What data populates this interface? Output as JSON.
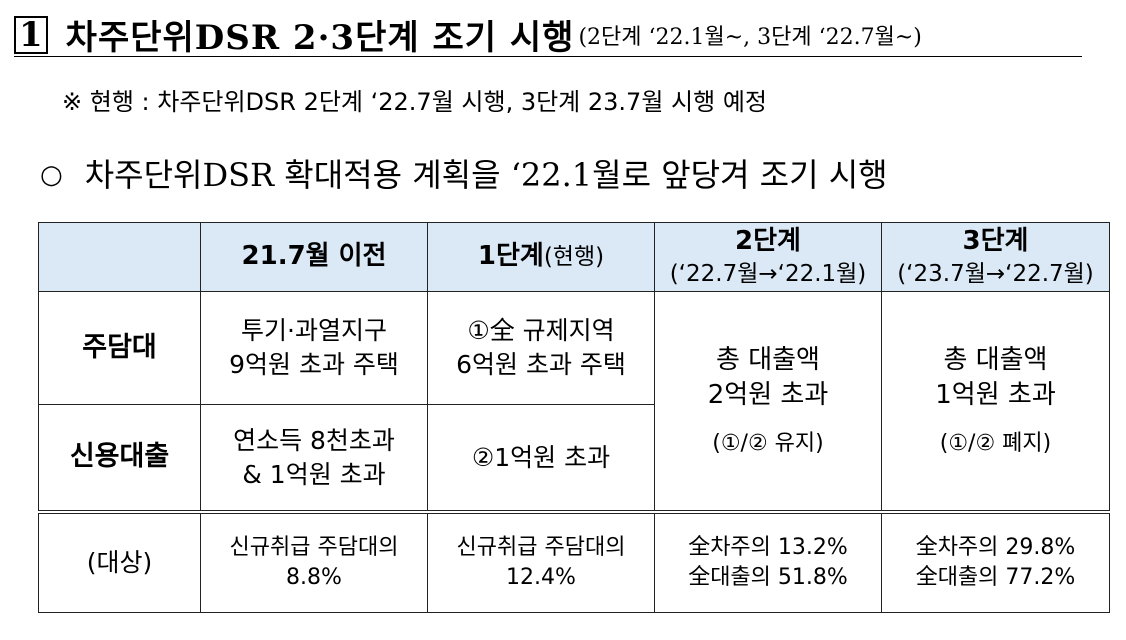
{
  "heading": {
    "number": "1",
    "title": "차주단위DSR 2·3단계 조기 시행",
    "subtitle": "(2단계 ‘22.1월~, 3단계 ‘22.7월~)"
  },
  "note": "※ 현행 : 차주단위DSR 2단계 ‘22.7월 시행, 3단계 23.7월 시행 예정",
  "bullet": {
    "marker": "○",
    "text": "차주단위DSR 확대적용 계획을 ‘22.1월로 앞당겨 조기 시행"
  },
  "table": {
    "header": {
      "col1": "21.7월 이전",
      "col2_main": "1단계",
      "col2_paren": "(현행)",
      "col3_main": "2단계",
      "col3_sub": "(‘22.7월→‘22.1월)",
      "col4_main": "3단계",
      "col4_sub": "(‘23.7월→‘22.7월)"
    },
    "rows": {
      "mortgage_label": "주담대",
      "mortgage_before_l1": "투기·과열지구",
      "mortgage_before_l2": "9억원 초과 주택",
      "mortgage_stage1_l1": "①全 규제지역",
      "mortgage_stage1_l2": "6억원 초과 주택",
      "credit_label": "신용대출",
      "credit_before_l1": "연소득 8천초과",
      "credit_before_l2": "& 1억원 초과",
      "credit_stage1": "②1억원 초과",
      "stage2_l1": "총 대출액",
      "stage2_l2": "2억원 초과",
      "stage2_note": "(①/② 유지)",
      "stage3_l1": "총 대출액",
      "stage3_l2": "1억원 초과",
      "stage3_note": "(①/② 폐지)"
    },
    "target": {
      "label": "(대상)",
      "before_l1": "신규취급 주담대의",
      "before_l2": "8.8%",
      "stage1_l1": "신규취급 주담대의",
      "stage1_l2": "12.4%",
      "stage2_l1": "全차주의 13.2%",
      "stage2_l2": "全대출의 51.8%",
      "stage3_l1": "全차주의 29.8%",
      "stage3_l2": "全대출의 77.2%"
    }
  }
}
